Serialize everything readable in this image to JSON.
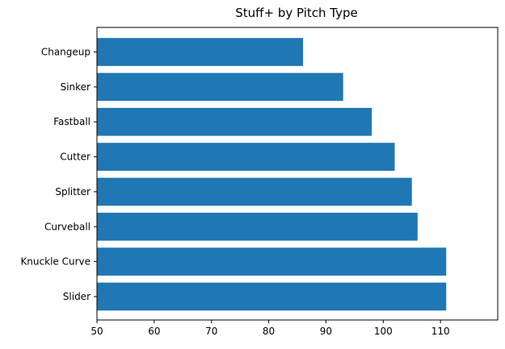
{
  "chart_data": {
    "type": "bar",
    "orientation": "horizontal",
    "title": "Stuff+ by Pitch Type",
    "xlabel": "",
    "ylabel": "",
    "categories": [
      "Changeup",
      "Sinker",
      "Fastball",
      "Cutter",
      "Splitter",
      "Curveball",
      "Knuckle Curve",
      "Slider"
    ],
    "values": [
      86,
      93,
      98,
      102,
      105,
      106,
      111,
      111
    ],
    "xlim": [
      50,
      120
    ],
    "xticks": [
      "50",
      "60",
      "70",
      "80",
      "90",
      "100",
      "110"
    ],
    "grid": false,
    "bar_color": "#1f77b4"
  }
}
